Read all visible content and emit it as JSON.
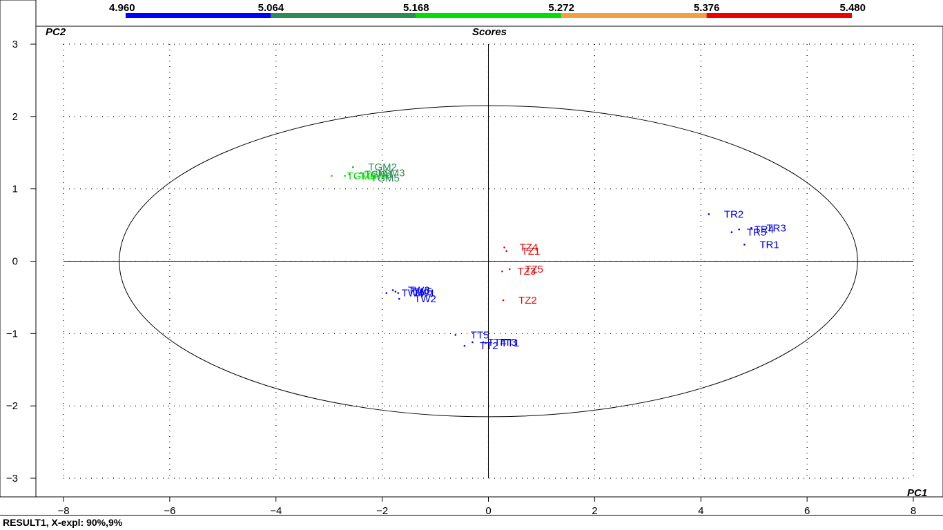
{
  "status_bar": {
    "text": "RESULT1, X-expl: 90%,9%"
  },
  "colorbar": {
    "labels": [
      "4.960",
      "5.064",
      "5.168",
      "5.272",
      "5.376",
      "5.480"
    ],
    "colors": [
      "#0000ff",
      "#2e8b57",
      "#00e000",
      "#f4a040",
      "#ee0000"
    ]
  },
  "chart_data": {
    "type": "scatter",
    "title": "Scores",
    "xlabel": "PC1",
    "ylabel": "PC2",
    "xlim": [
      -8,
      8
    ],
    "ylim": [
      -3,
      3
    ],
    "xticks": [
      -8,
      -6,
      -4,
      -2,
      0,
      2,
      4,
      6,
      8
    ],
    "yticks": [
      -3,
      -2,
      -1,
      0,
      1,
      2,
      3
    ],
    "xtick_labels": [
      "−8",
      "−6",
      "−4",
      "−2",
      "0",
      "2",
      "4",
      "6",
      "8"
    ],
    "ytick_labels": [
      "−3",
      "−2",
      "−1",
      "0",
      "1",
      "2",
      "3"
    ],
    "grid": true,
    "ellipse": {
      "cx": 0,
      "cy": 0,
      "rx": 6.95,
      "ry": 2.15
    },
    "colors": {
      "TGM": "#2e8b57",
      "TGMlight": "#00e000",
      "TR": "#0000ff",
      "TZ": "#ee0000",
      "TW": "#0000ff",
      "TT": "#0000ff"
    },
    "points": [
      {
        "label": "TGM2",
        "x": -2.55,
        "y": 1.3,
        "group": "TGM"
      },
      {
        "label": "TGM3",
        "x": -2.4,
        "y": 1.22,
        "group": "TGM"
      },
      {
        "label": "TGM1",
        "x": -2.62,
        "y": 1.2,
        "group": "TGM"
      },
      {
        "label": "TGM4",
        "x": -2.7,
        "y": 1.18,
        "group": "TGMlight"
      },
      {
        "label": "TGM5",
        "x": -2.5,
        "y": 1.15,
        "group": "TGM"
      },
      {
        "label": "TGM6",
        "x": -2.95,
        "y": 1.18,
        "group": "TGMlight"
      },
      {
        "label": "TR2",
        "x": 4.15,
        "y": 0.65,
        "group": "TR"
      },
      {
        "label": "TR4",
        "x": 4.72,
        "y": 0.44,
        "group": "TR"
      },
      {
        "label": "TR3",
        "x": 4.95,
        "y": 0.46,
        "group": "TR"
      },
      {
        "label": "TR5",
        "x": 4.58,
        "y": 0.4,
        "group": "TR"
      },
      {
        "label": "TR1",
        "x": 4.82,
        "y": 0.23,
        "group": "TR"
      },
      {
        "label": "TZ4",
        "x": 0.3,
        "y": 0.19,
        "group": "TZ"
      },
      {
        "label": "TZ1",
        "x": 0.34,
        "y": 0.14,
        "group": "TZ"
      },
      {
        "label": "TZ5",
        "x": 0.4,
        "y": -0.11,
        "group": "TZ"
      },
      {
        "label": "TZ3",
        "x": 0.26,
        "y": -0.14,
        "group": "TZ"
      },
      {
        "label": "TZ2",
        "x": 0.28,
        "y": -0.54,
        "group": "TZ"
      },
      {
        "label": "TW3",
        "x": -1.8,
        "y": -0.4,
        "group": "TW"
      },
      {
        "label": "TW5",
        "x": -1.75,
        "y": -0.42,
        "group": "TW"
      },
      {
        "label": "TW1",
        "x": -1.7,
        "y": -0.44,
        "group": "TW"
      },
      {
        "label": "TW4",
        "x": -1.92,
        "y": -0.44,
        "group": "TW"
      },
      {
        "label": "TW2",
        "x": -1.68,
        "y": -0.52,
        "group": "TW"
      },
      {
        "label": "TT5",
        "x": -0.62,
        "y": -1.02,
        "group": "TT"
      },
      {
        "label": "TT4",
        "x": -0.3,
        "y": -1.12,
        "group": "TT"
      },
      {
        "label": "TT3",
        "x": -0.1,
        "y": -1.12,
        "group": "TT"
      },
      {
        "label": "TT1",
        "x": -0.05,
        "y": -1.13,
        "group": "TT"
      },
      {
        "label": "TT2",
        "x": -0.45,
        "y": -1.17,
        "group": "TT"
      }
    ]
  }
}
